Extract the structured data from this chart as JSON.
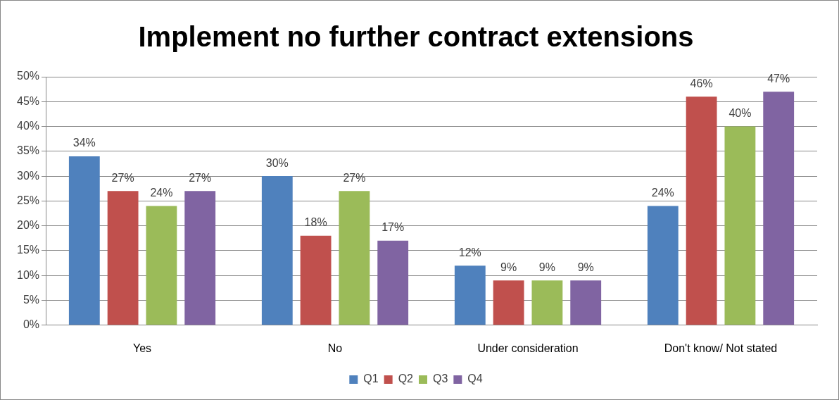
{
  "chart_data": {
    "type": "bar",
    "title": "Implement no further contract extensions",
    "categories": [
      "Yes",
      "No",
      "Under consideration",
      "Don't know/ Not stated"
    ],
    "series": [
      {
        "name": "Q1",
        "color": "#4f81bd",
        "values": [
          34,
          30,
          12,
          24
        ],
        "value_labels": [
          "34%",
          "30%",
          "12%",
          "24%"
        ]
      },
      {
        "name": "Q2",
        "color": "#c0504d",
        "values": [
          27,
          18,
          9,
          46
        ],
        "value_labels": [
          "27%",
          "18%",
          "9%",
          "46%"
        ]
      },
      {
        "name": "Q3",
        "color": "#9bbb59",
        "values": [
          24,
          27,
          9,
          40
        ],
        "value_labels": [
          "24%",
          "27%",
          "9%",
          "40%"
        ]
      },
      {
        "name": "Q4",
        "color": "#8064a2",
        "values": [
          27,
          17,
          9,
          47
        ],
        "value_labels": [
          "27%",
          "17%",
          "9%",
          "47%"
        ]
      }
    ],
    "ylim": [
      0,
      50
    ],
    "yticks": [
      {
        "value": 0,
        "label": "0%"
      },
      {
        "value": 5,
        "label": "5%"
      },
      {
        "value": 10,
        "label": "10%"
      },
      {
        "value": 15,
        "label": "15%"
      },
      {
        "value": 20,
        "label": "20%"
      },
      {
        "value": 25,
        "label": "25%"
      },
      {
        "value": 30,
        "label": "30%"
      },
      {
        "value": 35,
        "label": "35%"
      },
      {
        "value": 40,
        "label": "40%"
      },
      {
        "value": 45,
        "label": "45%"
      },
      {
        "value": 50,
        "label": "50%"
      }
    ],
    "grid": "y",
    "legend": "bottom"
  }
}
